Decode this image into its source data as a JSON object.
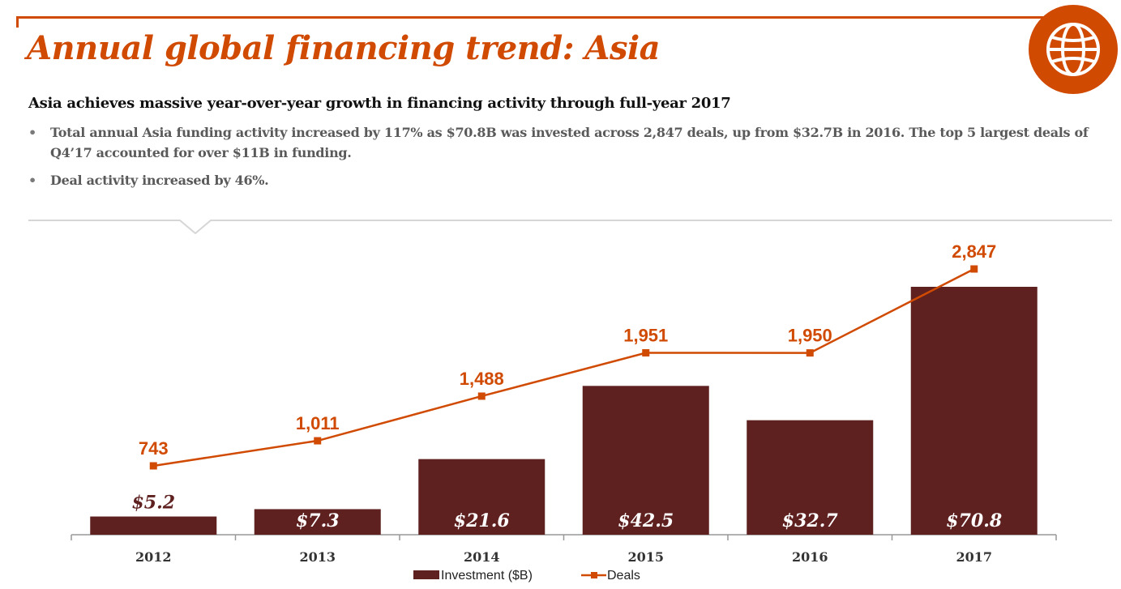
{
  "header": {
    "title": "Annual global financing trend: Asia",
    "icon": "globe-icon"
  },
  "summary": {
    "heading": "Asia achieves massive year-over-year growth in financing activity through full-year 2017",
    "bullets": [
      "Total annual Asia funding activity increased by 117% as $70.8B was invested across 2,847 deals, up from $32.7B in 2016. The top 5 largest deals of Q4’17 accounted for over $11B in funding.",
      "Deal activity increased by 46%."
    ]
  },
  "colors": {
    "accent": "#d04a02",
    "bar": "#5e2120",
    "axis": "#999999"
  },
  "chart_data": {
    "type": "bar",
    "categories": [
      "2012",
      "2013",
      "2014",
      "2015",
      "2016",
      "2017"
    ],
    "series": [
      {
        "name": "Investment ($B)",
        "type": "bar",
        "values": [
          5.2,
          7.3,
          21.6,
          42.5,
          32.7,
          70.8
        ],
        "labels": [
          "$5.2",
          "$7.3",
          "$21.6",
          "$42.5",
          "$32.7",
          "$70.8"
        ]
      },
      {
        "name": "Deals",
        "type": "line",
        "values": [
          743,
          1011,
          1488,
          1951,
          1950,
          2847
        ],
        "labels": [
          "743",
          "1,011",
          "1,488",
          "1,951",
          "1,950",
          "2,847"
        ]
      }
    ],
    "legend": [
      "Investment ($B)",
      "Deals"
    ],
    "legend_position": "bottom",
    "grid": false
  }
}
